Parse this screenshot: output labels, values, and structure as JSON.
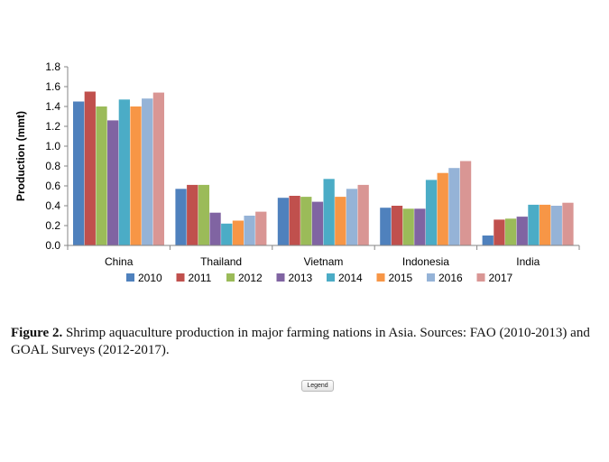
{
  "colors": {
    "2010": "#4f81bd",
    "2011": "#c0504d",
    "2012": "#9bbb59",
    "2013": "#8064a2",
    "2014": "#4bacc6",
    "2015": "#f79646",
    "2016": "#95b3d7",
    "2017": "#d99694"
  },
  "chart_data": {
    "type": "bar",
    "title": "",
    "xlabel": "",
    "ylabel": "Production (mmt)",
    "ylim": [
      0,
      1.8
    ],
    "yticks": [
      "0.0",
      "0.2",
      "0.4",
      "0.6",
      "0.8",
      "1.0",
      "1.2",
      "1.4",
      "1.6",
      "1.8"
    ],
    "grid": false,
    "legend_position": "bottom",
    "categories": [
      "China",
      "Thailand",
      "Vietnam",
      "Indonesia",
      "India"
    ],
    "series": [
      {
        "name": "2010",
        "values": [
          1.45,
          0.57,
          0.48,
          0.38,
          0.1
        ]
      },
      {
        "name": "2011",
        "values": [
          1.55,
          0.61,
          0.5,
          0.4,
          0.26
        ]
      },
      {
        "name": "2012",
        "values": [
          1.4,
          0.61,
          0.49,
          0.37,
          0.27
        ]
      },
      {
        "name": "2013",
        "values": [
          1.26,
          0.33,
          0.44,
          0.37,
          0.29
        ]
      },
      {
        "name": "2014",
        "values": [
          1.47,
          0.22,
          0.67,
          0.66,
          0.41
        ]
      },
      {
        "name": "2015",
        "values": [
          1.4,
          0.25,
          0.49,
          0.73,
          0.41
        ]
      },
      {
        "name": "2016",
        "values": [
          1.48,
          0.3,
          0.57,
          0.78,
          0.4
        ]
      },
      {
        "name": "2017",
        "values": [
          1.54,
          0.34,
          0.61,
          0.85,
          0.43
        ]
      }
    ]
  },
  "caption": {
    "label": "Figure 2.",
    "text": " Shrimp aquaculture production in major farming nations in Asia. Sources: FAO (2010-2013) and GOAL Surveys (2012-2017)."
  },
  "legend_button": {
    "label": "Legend"
  }
}
